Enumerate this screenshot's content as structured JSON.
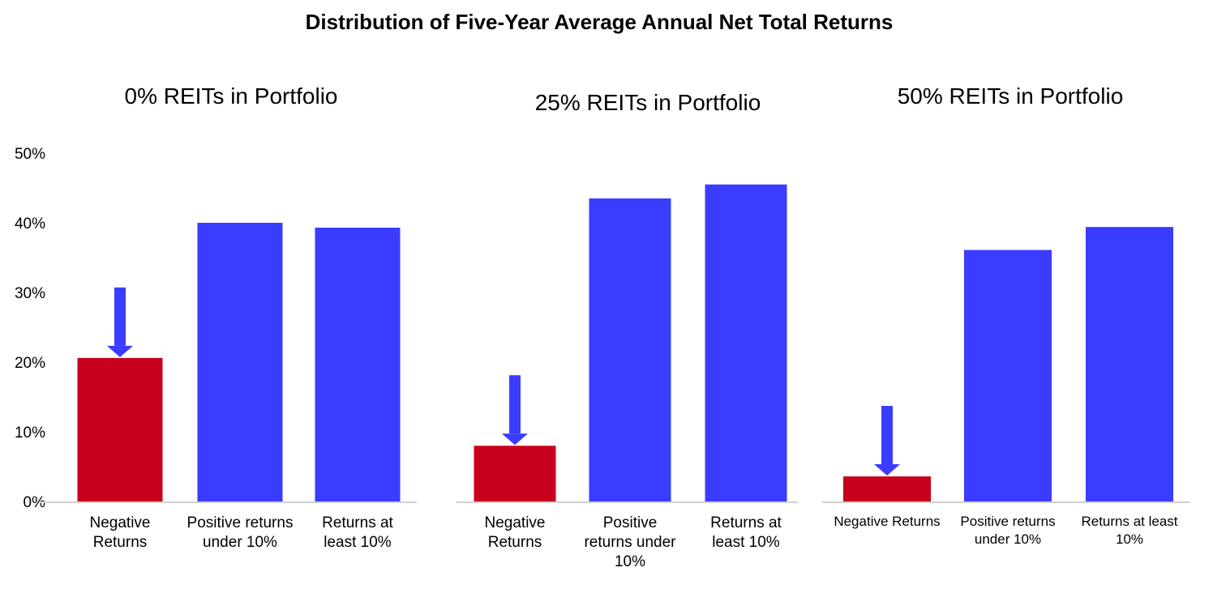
{
  "title": "Distribution of Five-Year Average Annual Net Total Returns",
  "colors": {
    "negative": "#C8001E",
    "positive": "#3A3CFF",
    "axis": "#D0D0D0",
    "arrow": "#3A3CFF"
  },
  "y_ticks": [
    "50%",
    "40%",
    "30%",
    "20%",
    "10%",
    "0%"
  ],
  "chart_data": [
    {
      "type": "bar",
      "title": "0% REITs in Portfolio",
      "categories": [
        "Negative Returns",
        "Positive returns under 10%",
        "Returns at least 10%"
      ],
      "category_lines": [
        [
          "Negative",
          "Returns"
        ],
        [
          "Positive returns",
          "under 10%"
        ],
        [
          "Returns at",
          "least 10%"
        ]
      ],
      "values": [
        20.6,
        40.0,
        39.3
      ],
      "ylim": [
        0,
        50
      ],
      "arrow_on": "Negative Returns"
    },
    {
      "type": "bar",
      "title": "25% REITs in Portfolio",
      "categories": [
        "Negative Returns",
        "Positive returns under 10%",
        "Returns at least 10%"
      ],
      "category_lines": [
        [
          "Negative",
          "Returns"
        ],
        [
          "Positive",
          "returns under",
          "10%"
        ],
        [
          "Returns at",
          "least 10%"
        ]
      ],
      "values": [
        8.0,
        43.5,
        45.5
      ],
      "ylim": [
        0,
        50
      ],
      "arrow_on": "Negative Returns"
    },
    {
      "type": "bar",
      "title": "50% REITs in Portfolio",
      "categories": [
        "Negative Returns",
        "Positive returns under 10%",
        "Returns at least 10%"
      ],
      "category_lines": [
        [
          "Negative Returns"
        ],
        [
          "Positive returns",
          "under 10%"
        ],
        [
          "Returns at least",
          "10%"
        ]
      ],
      "values": [
        3.6,
        36.1,
        39.4
      ],
      "ylim": [
        0,
        50
      ],
      "arrow_on": "Negative Returns"
    }
  ]
}
